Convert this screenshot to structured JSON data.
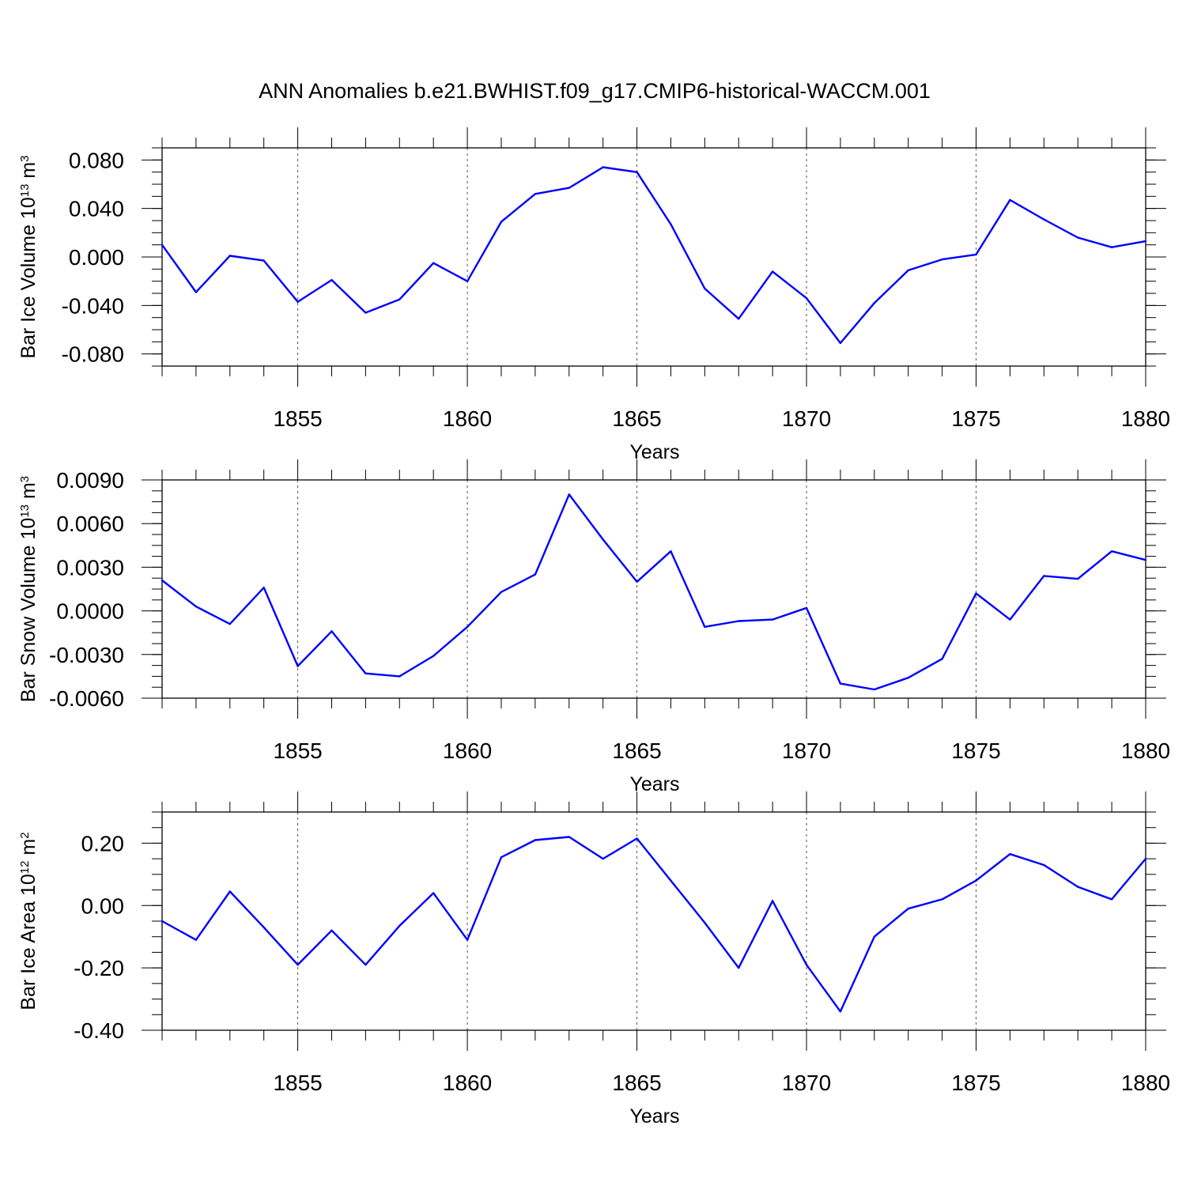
{
  "chart_data": {
    "title": "ANN Anomalies b.e21.BWHIST.f09_g17.CMIP6-historical-WACCM.001",
    "line_color": "#0000ff",
    "panels": [
      {
        "type": "line",
        "ylabel": {
          "prefix": "Bar Ice Volume 10",
          "exp": "13",
          "unit": " m",
          "unit_exp": "3"
        },
        "xlabel": "Years",
        "xlim": [
          1851,
          1880
        ],
        "ylim": [
          -0.09,
          0.09
        ],
        "xticks": [
          "1855",
          "1860",
          "1865",
          "1870",
          "1875",
          "1880"
        ],
        "yticks": [
          "0.080",
          "0.040",
          "0.000",
          "-0.040",
          "-0.080"
        ],
        "series": [
          {
            "name": "Bar Ice Volume",
            "x": [
              1851,
              1852,
              1853,
              1854,
              1855,
              1856,
              1857,
              1858,
              1859,
              1860,
              1861,
              1862,
              1863,
              1864,
              1865,
              1866,
              1867,
              1868,
              1869,
              1870,
              1871,
              1872,
              1873,
              1874,
              1875,
              1876,
              1877,
              1878,
              1879,
              1880
            ],
            "values": [
              0.01,
              -0.029,
              0.001,
              -0.003,
              -0.037,
              -0.019,
              -0.046,
              -0.035,
              -0.005,
              -0.02,
              0.029,
              0.052,
              0.057,
              0.074,
              0.07,
              0.027,
              -0.026,
              -0.051,
              -0.012,
              -0.034,
              -0.071,
              -0.038,
              -0.011,
              -0.002,
              0.002,
              0.047,
              0.031,
              0.016,
              0.008,
              0.013
            ]
          }
        ]
      },
      {
        "type": "line",
        "ylabel": {
          "prefix": "Bar Snow Volume 10",
          "exp": "13",
          "unit": " m",
          "unit_exp": "3"
        },
        "xlabel": "Years",
        "xlim": [
          1851,
          1880
        ],
        "ylim": [
          -0.006,
          0.009
        ],
        "xticks": [
          "1855",
          "1860",
          "1865",
          "1870",
          "1875",
          "1880"
        ],
        "yticks": [
          "0.0090",
          "0.0060",
          "0.0030",
          "0.0000",
          "-0.0030",
          "-0.0060"
        ],
        "series": [
          {
            "name": "Bar Snow Volume",
            "x": [
              1851,
              1852,
              1853,
              1854,
              1855,
              1856,
              1857,
              1858,
              1859,
              1860,
              1861,
              1862,
              1863,
              1864,
              1865,
              1866,
              1867,
              1868,
              1869,
              1870,
              1871,
              1872,
              1873,
              1874,
              1875,
              1876,
              1877,
              1878,
              1879,
              1880
            ],
            "values": [
              0.0021,
              0.0003,
              -0.0009,
              0.0016,
              -0.0038,
              -0.0014,
              -0.0043,
              -0.0045,
              -0.0031,
              -0.0011,
              0.0013,
              0.0025,
              0.008,
              0.0049,
              0.002,
              0.0041,
              -0.0011,
              -0.0007,
              -0.0006,
              0.0002,
              -0.005,
              -0.0054,
              -0.0046,
              -0.0033,
              0.0012,
              -0.0006,
              0.0024,
              0.0022,
              0.0041,
              0.0035
            ]
          }
        ]
      },
      {
        "type": "line",
        "ylabel": {
          "prefix": "Bar Ice Area 10",
          "exp": "12",
          "unit": " m",
          "unit_exp": "2"
        },
        "xlabel": "Years",
        "xlim": [
          1851,
          1880
        ],
        "ylim": [
          -0.4,
          0.3
        ],
        "xticks": [
          "1855",
          "1860",
          "1865",
          "1870",
          "1875",
          "1880"
        ],
        "yticks": [
          "0.20",
          "0.00",
          "-0.20",
          "-0.40"
        ],
        "series": [
          {
            "name": "Bar Ice Area",
            "x": [
              1851,
              1852,
              1853,
              1854,
              1855,
              1856,
              1857,
              1858,
              1859,
              1860,
              1861,
              1862,
              1863,
              1864,
              1865,
              1866,
              1867,
              1868,
              1869,
              1870,
              1871,
              1872,
              1873,
              1874,
              1875,
              1876,
              1877,
              1878,
              1879,
              1880
            ],
            "values": [
              -0.05,
              -0.11,
              0.045,
              -0.07,
              -0.19,
              -0.08,
              -0.19,
              -0.065,
              0.04,
              -0.11,
              0.155,
              0.21,
              0.22,
              0.15,
              0.215,
              0.08,
              -0.055,
              -0.2,
              0.015,
              -0.19,
              -0.34,
              -0.1,
              -0.01,
              0.02,
              0.08,
              0.165,
              0.13,
              0.06,
              0.02,
              0.15
            ]
          }
        ]
      }
    ]
  }
}
